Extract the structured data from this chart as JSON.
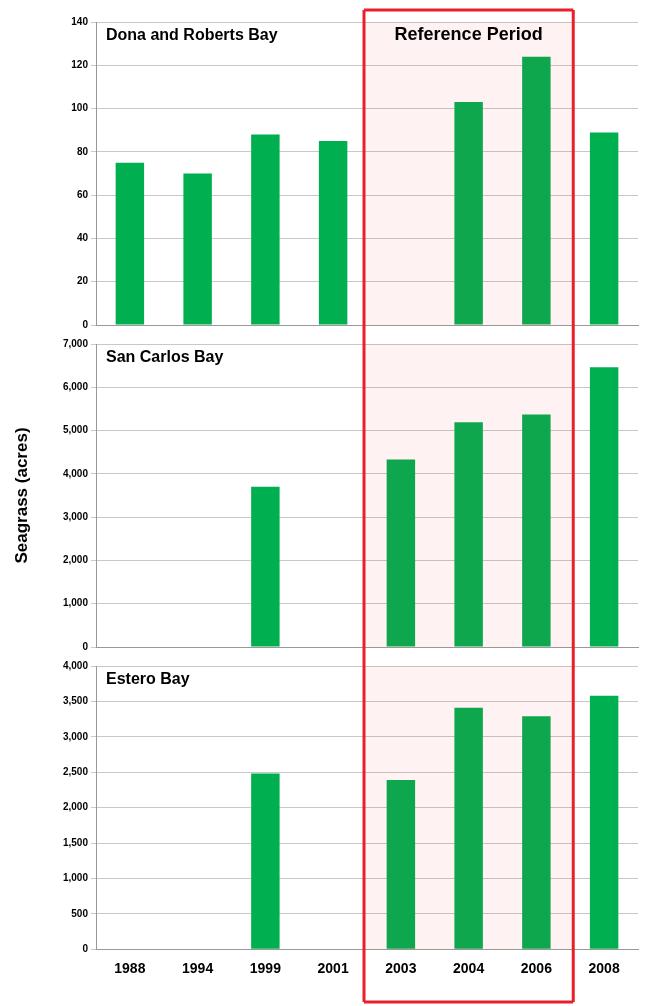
{
  "chart_data": [
    {
      "type": "bar",
      "title": "Dona and Roberts Bay",
      "categories": [
        "1988",
        "1994",
        "1999",
        "2001",
        "2003",
        "2004",
        "2006",
        "2008"
      ],
      "values": [
        75,
        70,
        88,
        85,
        null,
        103,
        124,
        89
      ],
      "color": "#00b050",
      "ylim": [
        0,
        140
      ],
      "yticks": [
        0,
        20,
        40,
        60,
        80,
        100,
        120,
        140
      ],
      "grid": "y",
      "tick_labels": "y",
      "bands": [
        {
          "axis": "x",
          "from": "2003",
          "to": "2006",
          "label": "Reference Period",
          "color": "#e8202a"
        }
      ]
    },
    {
      "type": "bar",
      "title": "San Carlos Bay",
      "ylabel": "Seagrass (acres)",
      "categories": [
        "1988",
        "1994",
        "1999",
        "2001",
        "2003",
        "2004",
        "2006",
        "2008"
      ],
      "values": [
        null,
        null,
        3700,
        null,
        4330,
        5190,
        5370,
        6460
      ],
      "color": "#00b050",
      "ylim": [
        0,
        7000
      ],
      "yticks": [
        {
          "value": 0,
          "label": "0"
        },
        {
          "value": 1000,
          "label": "1,000"
        },
        {
          "value": 2000,
          "label": "2,000"
        },
        {
          "value": 3000,
          "label": "3,000"
        },
        {
          "value": 4000,
          "label": "4,000"
        },
        {
          "value": 5000,
          "label": "5,000"
        },
        {
          "value": 6000,
          "label": "6,000"
        },
        {
          "value": 7000,
          "label": "7,000"
        }
      ],
      "grid": "y",
      "tick_labels": "y",
      "bands": [
        {
          "axis": "x",
          "from": "2003",
          "to": "2006",
          "color": "#e8202a"
        }
      ]
    },
    {
      "type": "bar",
      "title": "Estero Bay",
      "categories": [
        "1988",
        "1994",
        "1999",
        "2001",
        "2003",
        "2004",
        "2006",
        "2008"
      ],
      "values": [
        null,
        null,
        2480,
        null,
        2390,
        3410,
        3290,
        3580
      ],
      "color": "#00b050",
      "ylim": [
        0,
        4000
      ],
      "yticks": [
        {
          "value": 0,
          "label": "0"
        },
        {
          "value": 500,
          "label": "500"
        },
        {
          "value": 1000,
          "label": "1,000"
        },
        {
          "value": 1500,
          "label": "1,500"
        },
        {
          "value": 2000,
          "label": "2,000"
        },
        {
          "value": 2500,
          "label": "2,500"
        },
        {
          "value": 3000,
          "label": "3,000"
        },
        {
          "value": 3500,
          "label": "3,500"
        },
        {
          "value": 4000,
          "label": "4,000"
        }
      ],
      "grid": "y",
      "bands": [
        {
          "axis": "x",
          "from": "2003",
          "to": "2006",
          "color": "#e8202a"
        }
      ]
    }
  ]
}
